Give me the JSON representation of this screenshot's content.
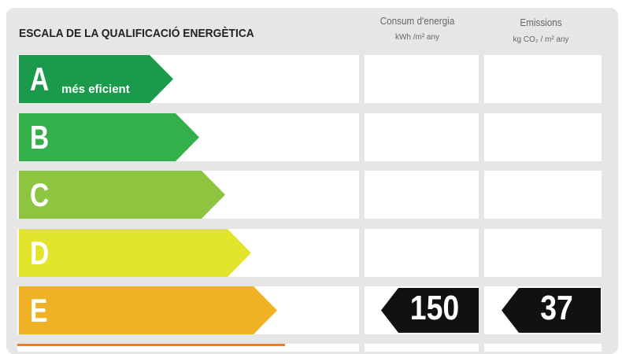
{
  "header": {
    "title": "ESCALA DE LA QUALIFICACIÓ ENERGÈTICA",
    "columns": [
      {
        "title": "Consum d'energia",
        "unit": "kWh /m² any"
      },
      {
        "title": "Emissions",
        "unit": "kg CO₂ / m² any"
      }
    ]
  },
  "rows": [
    {
      "letter": "A",
      "note": "més eficient",
      "color": "#1b9a4b"
    },
    {
      "letter": "B",
      "color": "#33b04a"
    },
    {
      "letter": "C",
      "color": "#8dc540"
    },
    {
      "letter": "D",
      "color": "#e2e52b"
    },
    {
      "letter": "E",
      "color": "#f0b225",
      "consumption": 150,
      "emissions": 37
    }
  ]
}
